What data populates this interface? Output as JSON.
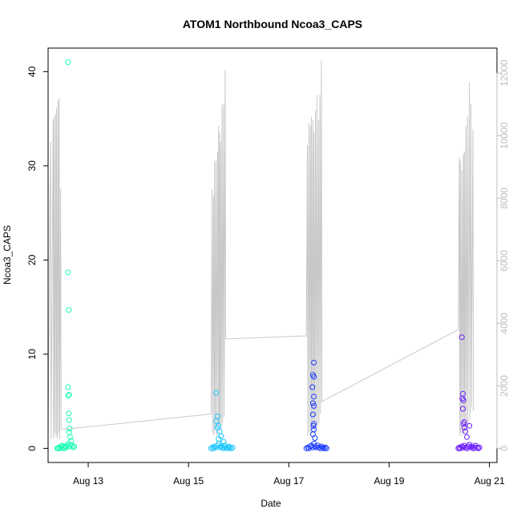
{
  "chart_data": {
    "type": "scatter",
    "title": "ATOM1 Northbound Ncoa3_CAPS",
    "xlabel": "Date",
    "ylabel": "Ncoa3_CAPS",
    "x_ticks": [
      "Aug 13",
      "Aug 15",
      "Aug 17",
      "Aug 19",
      "Aug 21"
    ],
    "x_tick_days": [
      13,
      15,
      17,
      19,
      21
    ],
    "xlim_days": [
      12.2,
      21.15
    ],
    "y_ticks": [
      0,
      10,
      20,
      30,
      40
    ],
    "ylim": [
      -1.5,
      42.5
    ],
    "y2_ticks": [
      0,
      2000,
      4000,
      6000,
      8000,
      10000,
      12000
    ],
    "y2lim": [
      -450,
      12800
    ],
    "grid": false,
    "colors": {
      "secondary_line": "#c8c8c8",
      "secondary_axis": "#bdbdbd",
      "day1": "#1affb6",
      "day2": "#1ac6ff",
      "day3": "#1a3bff",
      "day4": "#6a1aff"
    },
    "series": [
      {
        "color": "#1affb6",
        "x": [
          12.38,
          12.4,
          12.42,
          12.44,
          12.46,
          12.48,
          12.5,
          12.52,
          12.54,
          12.56,
          12.58,
          12.6,
          12.62,
          12.64,
          12.66,
          12.68,
          12.7,
          12.72,
          12.6,
          12.6,
          12.61,
          12.6,
          12.62,
          12.6,
          12.61,
          12.62,
          12.63,
          12.62,
          12.64
        ],
        "y": [
          0,
          0,
          0.1,
          0,
          0.2,
          0.3,
          0.1,
          0,
          0.2,
          0.1,
          0.3,
          0.5,
          0.2,
          0.4,
          0.8,
          0.3,
          0.1,
          0.2,
          41,
          18.7,
          14.7,
          6.5,
          5.7,
          5.6,
          3.7,
          3,
          2.1,
          1.7,
          1.2
        ]
      },
      {
        "color": "#1ac6ff",
        "x": [
          15.45,
          15.48,
          15.5,
          15.52,
          15.55,
          15.58,
          15.6,
          15.62,
          15.65,
          15.68,
          15.7,
          15.72,
          15.75,
          15.78,
          15.8,
          15.82,
          15.85,
          15.88,
          15.55,
          15.58,
          15.55,
          15.6,
          15.57,
          15.62,
          15.65,
          15.6,
          15.7
        ],
        "y": [
          0,
          0.1,
          0,
          0.2,
          0.1,
          0.3,
          0.5,
          0.1,
          0.2,
          0.1,
          0,
          0.3,
          0.1,
          0,
          0.2,
          0.1,
          0,
          0.1,
          5.9,
          3.4,
          2.9,
          2.4,
          2.2,
          1.8,
          1.3,
          1,
          0.7
        ]
      },
      {
        "color": "#1a3bff",
        "x": [
          17.35,
          17.38,
          17.4,
          17.43,
          17.45,
          17.48,
          17.5,
          17.52,
          17.55,
          17.58,
          17.6,
          17.63,
          17.65,
          17.68,
          17.7,
          17.73,
          17.75,
          17.5,
          17.48,
          17.5,
          17.47,
          17.5,
          17.48,
          17.5,
          17.48,
          17.5,
          17.49,
          17.5,
          17.48,
          17.52
        ],
        "y": [
          0,
          0.1,
          0,
          0.2,
          0.3,
          0.1,
          0.5,
          0.2,
          0.1,
          0.3,
          0.1,
          0,
          0.2,
          0.1,
          0,
          0.1,
          0,
          9.1,
          7.8,
          7.6,
          6.5,
          5.5,
          4.8,
          4.5,
          3.6,
          2.6,
          2.4,
          2,
          1.5,
          1.1
        ]
      },
      {
        "color": "#6a1aff",
        "x": [
          20.38,
          20.4,
          20.42,
          20.45,
          20.48,
          20.5,
          20.52,
          20.55,
          20.58,
          20.6,
          20.62,
          20.65,
          20.68,
          20.7,
          20.72,
          20.75,
          20.78,
          20.8,
          20.45,
          20.47,
          20.46,
          20.48,
          20.47,
          20.5,
          20.48,
          20.6,
          20.5,
          20.52,
          20.55
        ],
        "y": [
          0,
          0.1,
          0,
          0.2,
          0.1,
          0.3,
          0.1,
          0,
          0.2,
          0.4,
          0.1,
          0.2,
          0,
          0.1,
          0.3,
          0.1,
          0,
          0.1,
          11.8,
          5.8,
          5.3,
          5.1,
          4.2,
          2.8,
          2.6,
          2.4,
          2.2,
          1.8,
          1.2
        ]
      }
    ],
    "secondary_series": {
      "points": [
        [
          12.2,
          300
        ],
        [
          12.25,
          9800
        ],
        [
          12.26,
          300
        ],
        [
          12.3,
          10500
        ],
        [
          12.31,
          300
        ],
        [
          12.32,
          10600
        ],
        [
          12.33,
          500
        ],
        [
          12.35,
          10700
        ],
        [
          12.36,
          400
        ],
        [
          12.37,
          10900
        ],
        [
          12.38,
          300
        ],
        [
          12.4,
          11100
        ],
        [
          12.41,
          500
        ],
        [
          12.42,
          11200
        ],
        [
          12.43,
          300
        ],
        [
          12.45,
          8300
        ],
        [
          12.46,
          600
        ],
        [
          15.45,
          1100
        ],
        [
          15.47,
          8300
        ],
        [
          15.48,
          500
        ],
        [
          15.5,
          8100
        ],
        [
          15.51,
          400
        ],
        [
          15.52,
          9200
        ],
        [
          15.53,
          600
        ],
        [
          15.55,
          9200
        ],
        [
          15.56,
          400
        ],
        [
          15.58,
          9500
        ],
        [
          15.59,
          700
        ],
        [
          15.6,
          10300
        ],
        [
          15.61,
          500
        ],
        [
          15.62,
          10100
        ],
        [
          15.63,
          800
        ],
        [
          15.64,
          9800
        ],
        [
          15.65,
          600
        ],
        [
          15.67,
          11000
        ],
        [
          15.68,
          800
        ],
        [
          15.7,
          11000
        ],
        [
          15.71,
          1000
        ],
        [
          15.73,
          12100
        ],
        [
          15.74,
          3500
        ],
        [
          17.35,
          3600
        ],
        [
          17.37,
          9700
        ],
        [
          17.38,
          400
        ],
        [
          17.4,
          10400
        ],
        [
          17.41,
          500
        ],
        [
          17.43,
          10300
        ],
        [
          17.44,
          400
        ],
        [
          17.45,
          10600
        ],
        [
          17.46,
          500
        ],
        [
          17.48,
          10500
        ],
        [
          17.49,
          600
        ],
        [
          17.5,
          10100
        ],
        [
          17.51,
          500
        ],
        [
          17.53,
          10800
        ],
        [
          17.54,
          600
        ],
        [
          17.56,
          11300
        ],
        [
          17.57,
          700
        ],
        [
          17.59,
          10500
        ],
        [
          17.6,
          800
        ],
        [
          17.62,
          11300
        ],
        [
          17.63,
          1100
        ],
        [
          17.65,
          12400
        ],
        [
          17.66,
          1500
        ],
        [
          20.38,
          3800
        ],
        [
          20.4,
          9300
        ],
        [
          20.41,
          400
        ],
        [
          20.42,
          9200
        ],
        [
          20.43,
          500
        ],
        [
          20.45,
          8900
        ],
        [
          20.46,
          400
        ],
        [
          20.48,
          9400
        ],
        [
          20.49,
          500
        ],
        [
          20.5,
          9500
        ],
        [
          20.51,
          600
        ],
        [
          20.53,
          10300
        ],
        [
          20.54,
          500
        ],
        [
          20.56,
          10600
        ],
        [
          20.57,
          700
        ],
        [
          20.6,
          11700
        ],
        [
          20.61,
          900
        ],
        [
          20.63,
          11000
        ],
        [
          20.64,
          1300
        ],
        [
          20.67,
          10200
        ],
        [
          20.68,
          1200
        ]
      ]
    }
  }
}
